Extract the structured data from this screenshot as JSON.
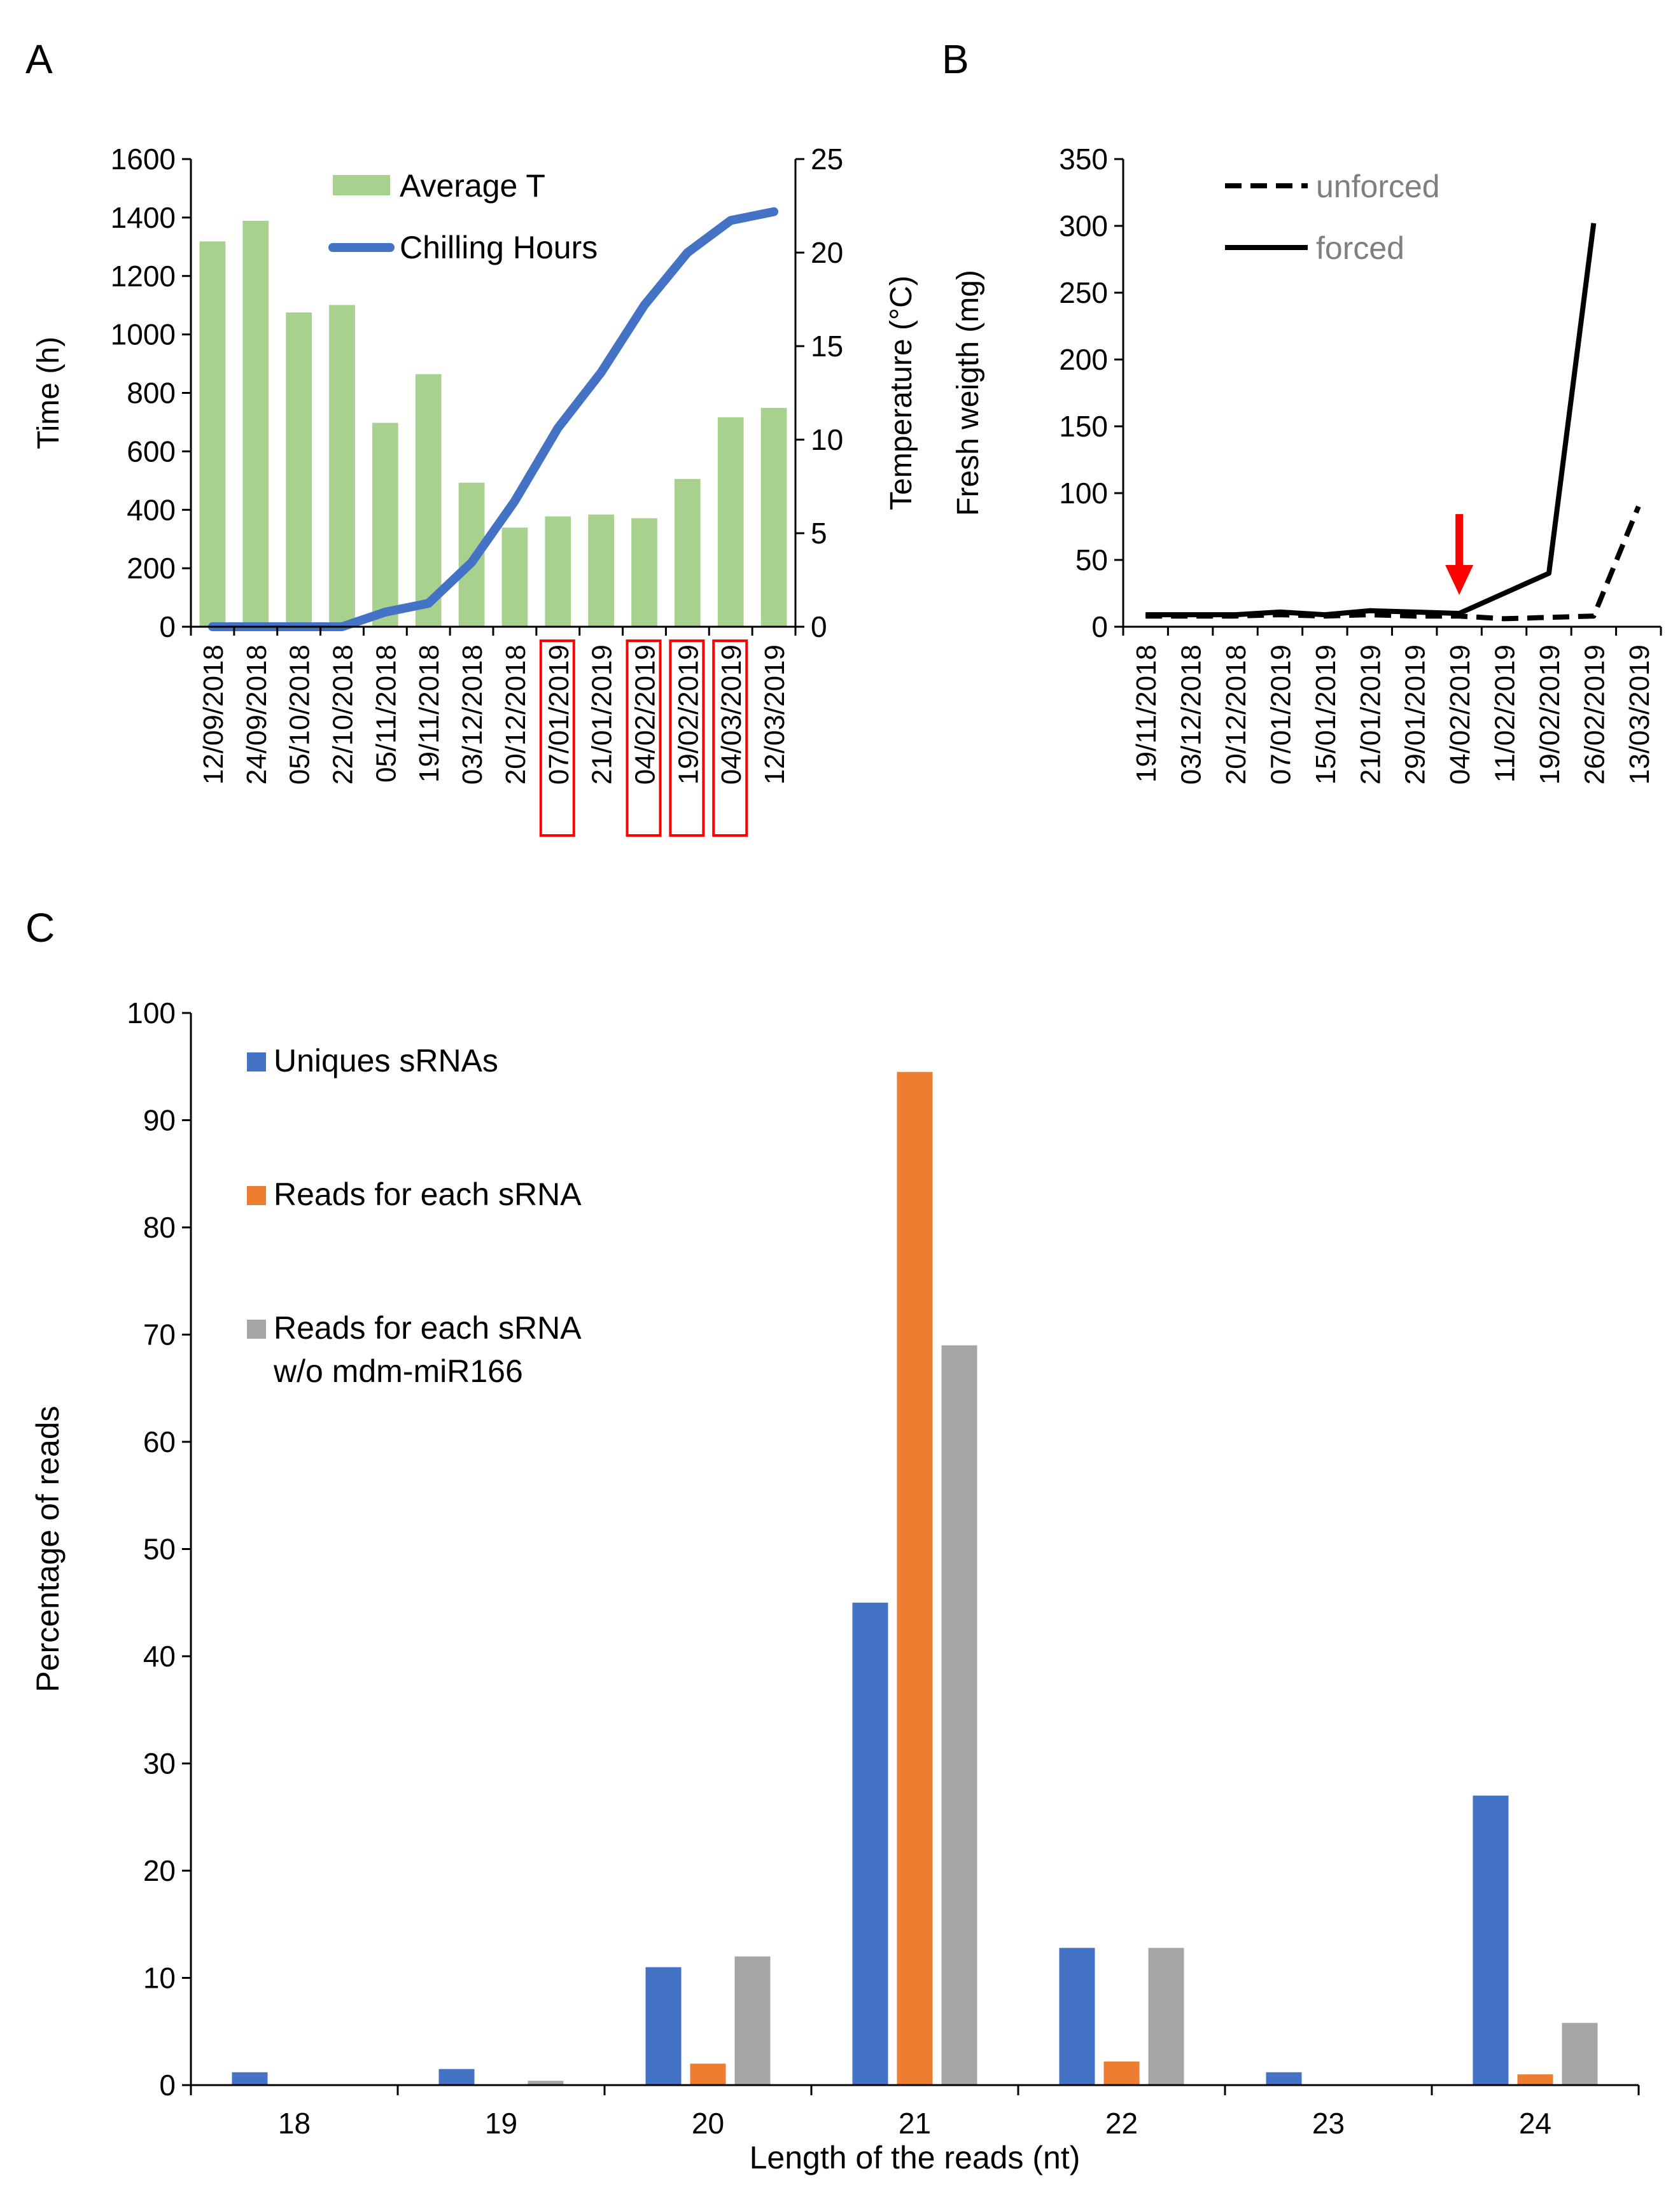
{
  "panel_labels": {
    "a": "A",
    "b": "B",
    "c": "C"
  },
  "colors": {
    "green": "#a9d18e",
    "blue": "#4472c4",
    "orange": "#ed7d31",
    "gray": "#a5a5a5",
    "black": "#000000",
    "red": "#ff0000",
    "legend_gray_text": "#7f7f7f"
  },
  "chart_data": [
    {
      "panel": "A",
      "type": "bar",
      "categories": [
        "12/09/2018",
        "24/09/2018",
        "05/10/2018",
        "22/10/2018",
        "05/11/2018",
        "19/11/2018",
        "03/12/2018",
        "20/12/2018",
        "07/01/2019",
        "21/01/2019",
        "04/02/2019",
        "19/02/2019",
        "04/03/2019",
        "12/03/2019"
      ],
      "highlighted_categories": [
        "07/01/2019",
        "04/02/2019",
        "19/02/2019",
        "04/03/2019"
      ],
      "ylabel": "Time (h)",
      "ylim": [
        0,
        1600
      ],
      "yticks": [
        0,
        200,
        400,
        600,
        800,
        1000,
        1200,
        1400,
        1600
      ],
      "y2label": "Temperature (°C)",
      "y2lim": [
        0,
        25
      ],
      "y2ticks": [
        0,
        5,
        10,
        15,
        20,
        25
      ],
      "series": [
        {
          "name": "Average T",
          "kind": "bar",
          "axis": "right",
          "values": [
            20.6,
            21.7,
            16.8,
            17.2,
            10.9,
            13.5,
            7.7,
            5.3,
            5.9,
            6.0,
            5.8,
            7.9,
            11.2,
            11.7
          ]
        },
        {
          "name": "Chilling Hours",
          "kind": "line",
          "axis": "left",
          "values": [
            0,
            0,
            0,
            0,
            50,
            80,
            220,
            430,
            680,
            870,
            1100,
            1280,
            1390,
            1420
          ]
        }
      ]
    },
    {
      "panel": "B",
      "type": "line",
      "categories": [
        "19/11/2018",
        "03/12/2018",
        "20/12/2018",
        "07/01/2019",
        "15/01/2019",
        "21/01/2019",
        "29/01/2019",
        "04/02/2019",
        "11/02/2019",
        "19/02/2019",
        "26/02/2019",
        "13/03/2019"
      ],
      "ylabel": "Fresh weigth (mg)",
      "ylim": [
        0,
        350
      ],
      "yticks": [
        0,
        50,
        100,
        150,
        200,
        250,
        300,
        350
      ],
      "annotation": {
        "type": "arrow",
        "category": "04/02/2019",
        "color": "red"
      },
      "series": [
        {
          "name": "unforced",
          "style": "dashed",
          "values": [
            8,
            8,
            8,
            9,
            8,
            9,
            8,
            8,
            6,
            7,
            8,
            90
          ]
        },
        {
          "name": "forced",
          "style": "solid",
          "values": [
            9,
            9,
            9,
            11,
            9,
            12,
            11,
            10,
            25,
            40,
            302,
            null
          ]
        }
      ]
    },
    {
      "panel": "C",
      "type": "bar",
      "categories": [
        "18",
        "19",
        "20",
        "21",
        "22",
        "23",
        "24"
      ],
      "xlabel": "Length of the reads (nt)",
      "ylabel": "Percentage of reads",
      "ylim": [
        0,
        100
      ],
      "yticks": [
        0,
        10,
        20,
        30,
        40,
        50,
        60,
        70,
        80,
        90,
        100
      ],
      "series": [
        {
          "name": "Uniques sRNAs",
          "values": [
            1.2,
            1.5,
            11,
            45,
            12.8,
            1.2,
            27
          ]
        },
        {
          "name": "Reads for each sRNA",
          "values": [
            0,
            0,
            2,
            94.5,
            2.2,
            0,
            1
          ]
        },
        {
          "name": "Reads for each sRNA w/o mdm-miR166",
          "legend_lines": [
            "Reads for each sRNA",
            "w/o mdm-miR166"
          ],
          "values": [
            0,
            0.4,
            12,
            69,
            12.8,
            0,
            5.8
          ]
        }
      ]
    }
  ]
}
